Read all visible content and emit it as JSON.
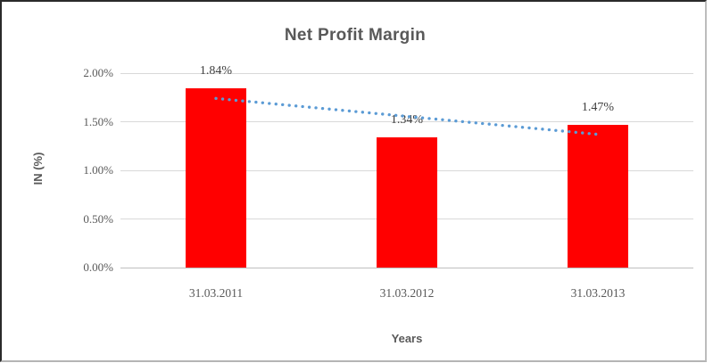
{
  "window": {
    "background_color": "#FFFFFF",
    "border_dark_color": "#2A2A2A",
    "border_light_color": "#BDBDBD"
  },
  "chart_data": {
    "type": "bar",
    "title": "Net Profit Margin",
    "xlabel": "Years",
    "ylabel": "IN (%)",
    "categories": [
      "31.03.2011",
      "31.03.2012",
      "31.03.2013"
    ],
    "values": [
      1.84,
      1.34,
      1.47
    ],
    "value_labels": [
      "1.84%",
      "1.34%",
      "1.47%"
    ],
    "y_ticks": [
      "2.00%",
      "1.50%",
      "1.00%",
      "0.50%",
      "0.00%"
    ],
    "y_tick_values": [
      2.0,
      1.5,
      1.0,
      0.5,
      0.0
    ],
    "ylim": [
      0,
      2.0
    ],
    "grid": true,
    "legend": "none",
    "bar_color": "#FF0000",
    "gridline_color": "#D9D9D9",
    "axis_line_color": "#BFBFBF",
    "text_color": "#595959",
    "data_label_color": "#3F3F3F",
    "trendline": {
      "style": "dotted",
      "color": "#5B9BD5",
      "start_value": 1.74,
      "end_value": 1.37
    }
  }
}
